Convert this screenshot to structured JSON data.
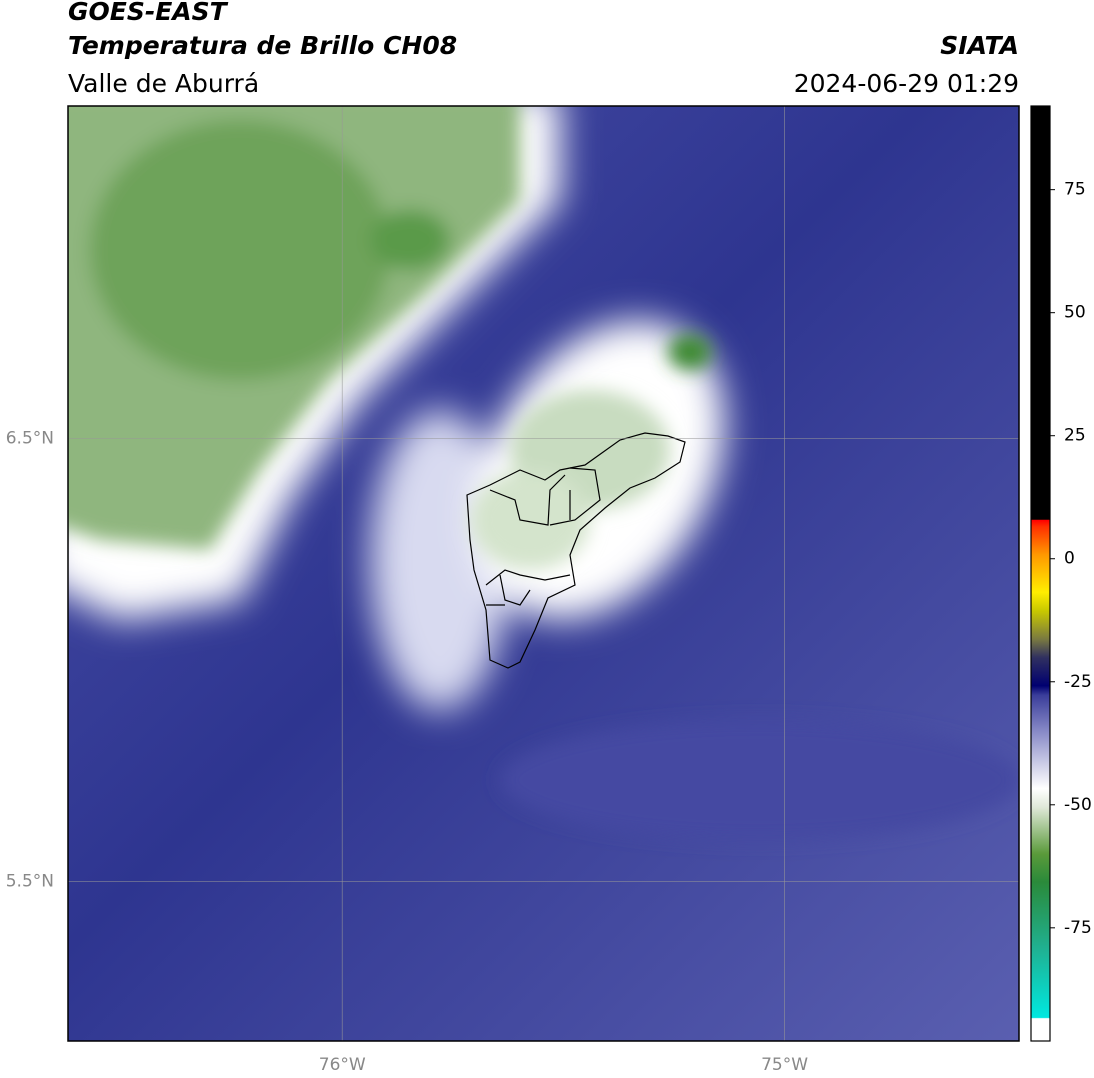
{
  "header": {
    "title": "GOES-EAST",
    "subtitle": "Temperatura de Brillo CH08",
    "region": "Valle de Aburrá",
    "source": "SIATA",
    "datetime": "2024-06-29 01:29"
  },
  "map": {
    "xlim": [
      -76.62,
      -74.47
    ],
    "ylim": [
      5.14,
      7.25
    ],
    "xticks": [
      {
        "value": -76,
        "label": "76°W"
      },
      {
        "value": -75,
        "label": "75°W"
      }
    ],
    "yticks": [
      {
        "value": 6.5,
        "label": "6.5°N"
      },
      {
        "value": 5.5,
        "label": "5.5°N"
      }
    ],
    "grid": true
  },
  "colorbar": {
    "lim": [
      -98,
      92
    ],
    "ticks": [
      75,
      50,
      25,
      0,
      -25,
      -50,
      -75
    ]
  }
}
